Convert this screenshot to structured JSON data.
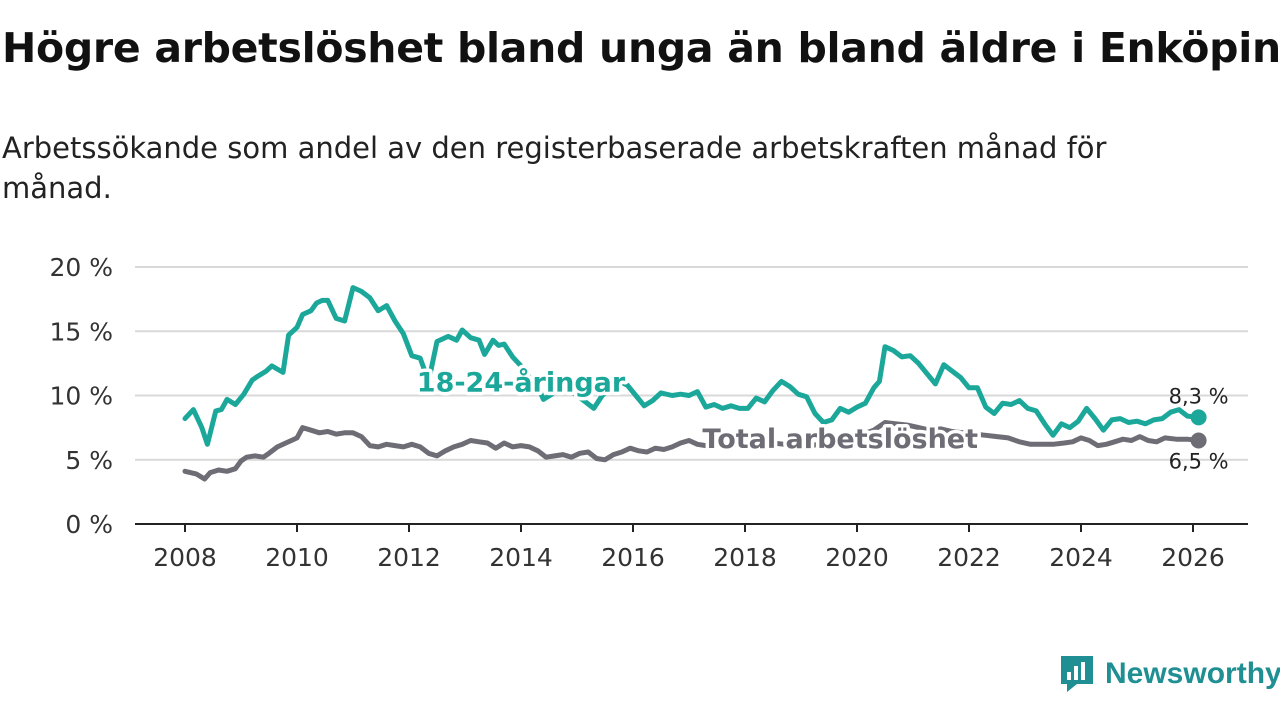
{
  "header": {
    "title": "Högre arbetslöshet bland unga än bland äldre i Enköping",
    "subtitle": "Arbetssökande som andel av den registerbaserade arbetskraften månad för månad."
  },
  "brand": {
    "name": "Newsworthy",
    "icon": "newsworthy-logo-icon"
  },
  "colors": {
    "youth": "#1ba89a",
    "total": "#6e6d75",
    "grid": "#d9d9d9",
    "axis": "#222222"
  },
  "chart_data": {
    "type": "line",
    "title": "Högre arbetslöshet bland unga än bland äldre i Enköping",
    "xlabel": "",
    "ylabel": "",
    "xlim": [
      2007.5,
      2027.0
    ],
    "ylim": [
      0,
      20
    ],
    "y_ticks": [
      0,
      5,
      10,
      15,
      20
    ],
    "y_tick_labels": [
      "0 %",
      "5 %",
      "10 %",
      "15 %",
      "20 %"
    ],
    "x_ticks": [
      2008,
      2010,
      2012,
      2014,
      2016,
      2018,
      2020,
      2022,
      2024,
      2026
    ],
    "x_tick_labels": [
      "2008",
      "2010",
      "2012",
      "2014",
      "2016",
      "2018",
      "2020",
      "2022",
      "2024",
      "2026"
    ],
    "grid": true,
    "series": [
      {
        "name": "18-24-åringar",
        "label": "18-24-åringar",
        "end_label": "8,3 %",
        "x": [
          2008.0,
          2008.15,
          2008.3,
          2008.4,
          2008.55,
          2008.65,
          2008.75,
          2008.9,
          2009.05,
          2009.2,
          2009.3,
          2009.45,
          2009.55,
          2009.75,
          2009.85,
          2010.0,
          2010.1,
          2010.25,
          2010.35,
          2010.45,
          2010.55,
          2010.7,
          2010.85,
          2011.0,
          2011.15,
          2011.3,
          2011.45,
          2011.6,
          2011.75,
          2011.9,
          2012.05,
          2012.2,
          2012.35,
          2012.5,
          2012.7,
          2012.85,
          2012.95,
          2013.1,
          2013.25,
          2013.35,
          2013.5,
          2013.6,
          2013.7,
          2013.85,
          2014.0,
          2014.15,
          2014.3,
          2014.4,
          2014.55,
          2014.7,
          2014.85,
          2015.0,
          2015.15,
          2015.3,
          2015.45,
          2015.6,
          2015.75,
          2015.9,
          2016.05,
          2016.2,
          2016.35,
          2016.5,
          2016.7,
          2016.85,
          2017.0,
          2017.15,
          2017.3,
          2017.45,
          2017.6,
          2017.75,
          2017.9,
          2018.05,
          2018.2,
          2018.35,
          2018.5,
          2018.65,
          2018.8,
          2018.95,
          2019.1,
          2019.25,
          2019.4,
          2019.55,
          2019.7,
          2019.85,
          2020.0,
          2020.15,
          2020.3,
          2020.4,
          2020.5,
          2020.65,
          2020.8,
          2020.95,
          2021.1,
          2021.25,
          2021.4,
          2021.55,
          2021.7,
          2021.85,
          2022.0,
          2022.15,
          2022.3,
          2022.45,
          2022.6,
          2022.75,
          2022.9,
          2023.05,
          2023.2,
          2023.35,
          2023.5,
          2023.65,
          2023.8,
          2023.95,
          2024.1,
          2024.25,
          2024.4,
          2024.55,
          2024.7,
          2024.85,
          2025.0,
          2025.15,
          2025.3,
          2025.45,
          2025.6,
          2025.75,
          2025.9,
          2026.1
        ],
        "values": [
          8.2,
          8.9,
          7.5,
          6.2,
          8.8,
          8.9,
          9.7,
          9.3,
          10.1,
          11.2,
          11.5,
          11.9,
          12.3,
          11.8,
          14.7,
          15.3,
          16.3,
          16.6,
          17.2,
          17.4,
          17.4,
          16.0,
          15.8,
          18.4,
          18.1,
          17.6,
          16.6,
          17.0,
          15.8,
          14.8,
          13.1,
          12.9,
          11.1,
          14.2,
          14.6,
          14.3,
          15.1,
          14.5,
          14.3,
          13.2,
          14.3,
          13.9,
          14.0,
          13.0,
          12.3,
          11.4,
          10.7,
          9.7,
          10.1,
          11.3,
          10.5,
          10.0,
          9.5,
          9.0,
          10.0,
          10.5,
          11.1,
          10.8,
          10.0,
          9.2,
          9.6,
          10.2,
          10.0,
          10.1,
          10.0,
          10.3,
          9.1,
          9.3,
          9.0,
          9.2,
          9.0,
          9.0,
          9.8,
          9.5,
          10.4,
          11.1,
          10.7,
          10.1,
          9.9,
          8.6,
          7.9,
          8.1,
          9.0,
          8.7,
          9.1,
          9.4,
          10.6,
          11.1,
          13.8,
          13.5,
          13.0,
          13.1,
          12.5,
          11.7,
          10.9,
          12.4,
          11.9,
          11.4,
          10.6,
          10.6,
          9.1,
          8.6,
          9.4,
          9.3,
          9.6,
          9.0,
          8.8,
          7.8,
          6.9,
          7.8,
          7.5,
          8.0,
          9.0,
          8.2,
          7.3,
          8.1,
          8.2,
          7.9,
          8.0,
          7.8,
          8.1,
          8.2,
          8.7,
          8.9,
          8.4,
          8.3
        ]
      },
      {
        "name": "Total arbetslöshet",
        "label": "Total arbetslöshet",
        "end_label": "6,5 %",
        "x": [
          2008.0,
          2008.2,
          2008.35,
          2008.45,
          2008.6,
          2008.75,
          2008.9,
          2009.0,
          2009.1,
          2009.25,
          2009.4,
          2009.5,
          2009.65,
          2009.8,
          2009.9,
          2010.0,
          2010.1,
          2010.25,
          2010.4,
          2010.55,
          2010.7,
          2010.85,
          2011.0,
          2011.15,
          2011.3,
          2011.45,
          2011.6,
          2011.75,
          2011.9,
          2012.05,
          2012.2,
          2012.35,
          2012.5,
          2012.65,
          2012.8,
          2012.95,
          2013.1,
          2013.25,
          2013.4,
          2013.55,
          2013.7,
          2013.85,
          2014.0,
          2014.15,
          2014.3,
          2014.45,
          2014.6,
          2014.75,
          2014.9,
          2015.05,
          2015.2,
          2015.35,
          2015.5,
          2015.65,
          2015.8,
          2015.95,
          2016.1,
          2016.25,
          2016.4,
          2016.55,
          2016.7,
          2016.85,
          2017.0,
          2017.15,
          2017.3,
          2017.5,
          2017.7,
          2017.9,
          2018.1,
          2018.3,
          2018.5,
          2018.7,
          2018.9,
          2019.1,
          2019.3,
          2019.5,
          2019.7,
          2019.9,
          2020.1,
          2020.3,
          2020.5,
          2020.7,
          2020.9,
          2021.1,
          2021.3,
          2021.5,
          2021.7,
          2021.9,
          2022.1,
          2022.3,
          2022.5,
          2022.7,
          2022.9,
          2023.1,
          2023.3,
          2023.5,
          2023.7,
          2023.85,
          2024.0,
          2024.15,
          2024.3,
          2024.45,
          2024.6,
          2024.75,
          2024.9,
          2025.05,
          2025.2,
          2025.35,
          2025.5,
          2025.7,
          2025.9,
          2026.1
        ],
        "values": [
          4.1,
          3.9,
          3.5,
          4.0,
          4.2,
          4.1,
          4.3,
          4.9,
          5.2,
          5.3,
          5.2,
          5.5,
          6.0,
          6.3,
          6.5,
          6.7,
          7.5,
          7.3,
          7.1,
          7.2,
          7.0,
          7.1,
          7.1,
          6.8,
          6.1,
          6.0,
          6.2,
          6.1,
          6.0,
          6.2,
          6.0,
          5.5,
          5.3,
          5.7,
          6.0,
          6.2,
          6.5,
          6.4,
          6.3,
          5.9,
          6.3,
          6.0,
          6.1,
          6.0,
          5.7,
          5.2,
          5.3,
          5.4,
          5.2,
          5.5,
          5.6,
          5.1,
          5.0,
          5.4,
          5.6,
          5.9,
          5.7,
          5.6,
          5.9,
          5.8,
          6.0,
          6.3,
          6.5,
          6.2,
          6.1,
          6.2,
          6.5,
          6.6,
          6.7,
          6.4,
          6.3,
          6.2,
          6.1,
          6.0,
          6.2,
          6.3,
          6.6,
          6.8,
          7.0,
          7.3,
          7.9,
          7.8,
          7.7,
          7.5,
          7.3,
          7.4,
          7.2,
          7.1,
          7.0,
          6.9,
          6.8,
          6.7,
          6.4,
          6.2,
          6.2,
          6.2,
          6.3,
          6.4,
          6.7,
          6.5,
          6.1,
          6.2,
          6.4,
          6.6,
          6.5,
          6.8,
          6.5,
          6.4,
          6.7,
          6.6,
          6.6,
          6.5
        ]
      }
    ]
  }
}
